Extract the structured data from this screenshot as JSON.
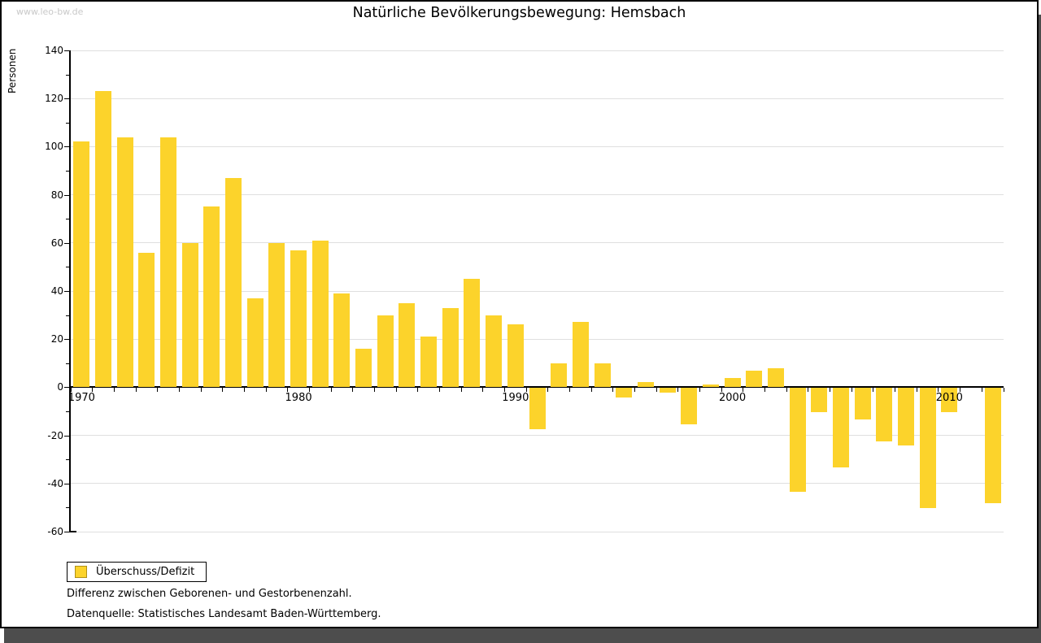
{
  "watermark": "www.leo-bw.de",
  "title": "Natürliche Bevölkerungsbewegung: Hemsbach",
  "legend": {
    "label": "Überschuss/Defizit"
  },
  "notes": {
    "line1": "Differenz zwischen Geborenen- und Gestorbenenzahl.",
    "line2": "Datenquelle: Statistisches Landesamt Baden-Württemberg."
  },
  "colors": {
    "bar": "#FCD32B",
    "bar_border": "#AF9018",
    "grid": "#DFDFDF",
    "axis": "#000000",
    "watermark": "#C9C9C9",
    "shadow": "#4D4D4D"
  },
  "chart_data": {
    "type": "bar",
    "title": "Natürliche Bevölkerungsbewegung: Hemsbach",
    "xlabel": "",
    "ylabel": "Personen",
    "series_name": "Überschuss/Defizit",
    "categories": [
      1970,
      1971,
      1972,
      1973,
      1974,
      1975,
      1976,
      1977,
      1978,
      1979,
      1980,
      1981,
      1982,
      1983,
      1984,
      1985,
      1986,
      1987,
      1988,
      1989,
      1990,
      1991,
      1992,
      1993,
      1994,
      1995,
      1996,
      1997,
      1998,
      1999,
      2000,
      2001,
      2002,
      2003,
      2004,
      2005,
      2006,
      2007,
      2008,
      2009,
      2010,
      2011,
      2012
    ],
    "values": [
      102,
      123,
      104,
      56,
      104,
      60,
      75,
      87,
      37,
      60,
      57,
      61,
      39,
      16,
      30,
      35,
      21,
      33,
      45,
      30,
      26,
      -17,
      10,
      27,
      10,
      -4,
      2,
      -2,
      -15,
      1,
      4,
      7,
      8,
      -43,
      -10,
      -33,
      -13,
      -22,
      -24,
      -50,
      -10,
      0,
      -48
    ],
    "ylim": [
      -60,
      140
    ],
    "ytick_step": 20,
    "yticks_labeled": [
      140,
      120,
      100,
      80,
      60,
      40,
      20,
      0,
      -20,
      -40,
      -60
    ],
    "xticks_labeled": [
      1970,
      1980,
      1990,
      2000,
      2010
    ],
    "grid": true,
    "legend_position": "bottom-left"
  }
}
